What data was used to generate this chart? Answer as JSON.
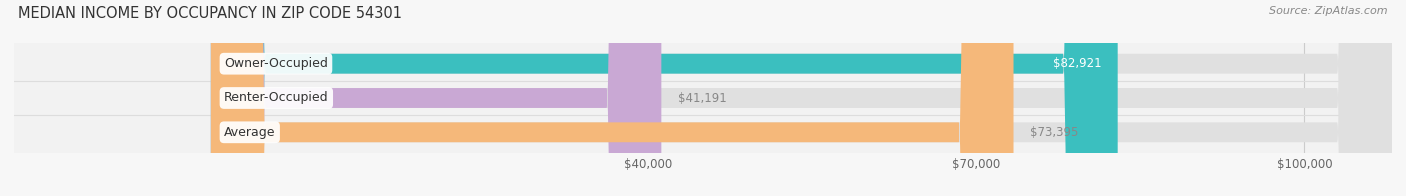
{
  "title": "MEDIAN INCOME BY OCCUPANCY IN ZIP CODE 54301",
  "source": "Source: ZipAtlas.com",
  "categories": [
    "Owner-Occupied",
    "Renter-Occupied",
    "Average"
  ],
  "values": [
    82921,
    41191,
    73395
  ],
  "bar_colors": [
    "#3bbfbf",
    "#c9a8d4",
    "#f5b87a"
  ],
  "bar_bg_color": "#e0e0e0",
  "plot_bg_color": "#f2f2f2",
  "fig_bg_color": "#f7f7f7",
  "xlim_min": -18000,
  "xlim_max": 108000,
  "xticks": [
    40000,
    70000,
    100000
  ],
  "xtick_labels": [
    "$40,000",
    "$70,000",
    "$100,000"
  ],
  "title_fontsize": 10.5,
  "source_fontsize": 8,
  "label_fontsize": 9,
  "value_fontsize": 8.5,
  "value_colors": [
    "white",
    "#888888",
    "#888888"
  ],
  "value_inside": [
    true,
    false,
    false
  ]
}
